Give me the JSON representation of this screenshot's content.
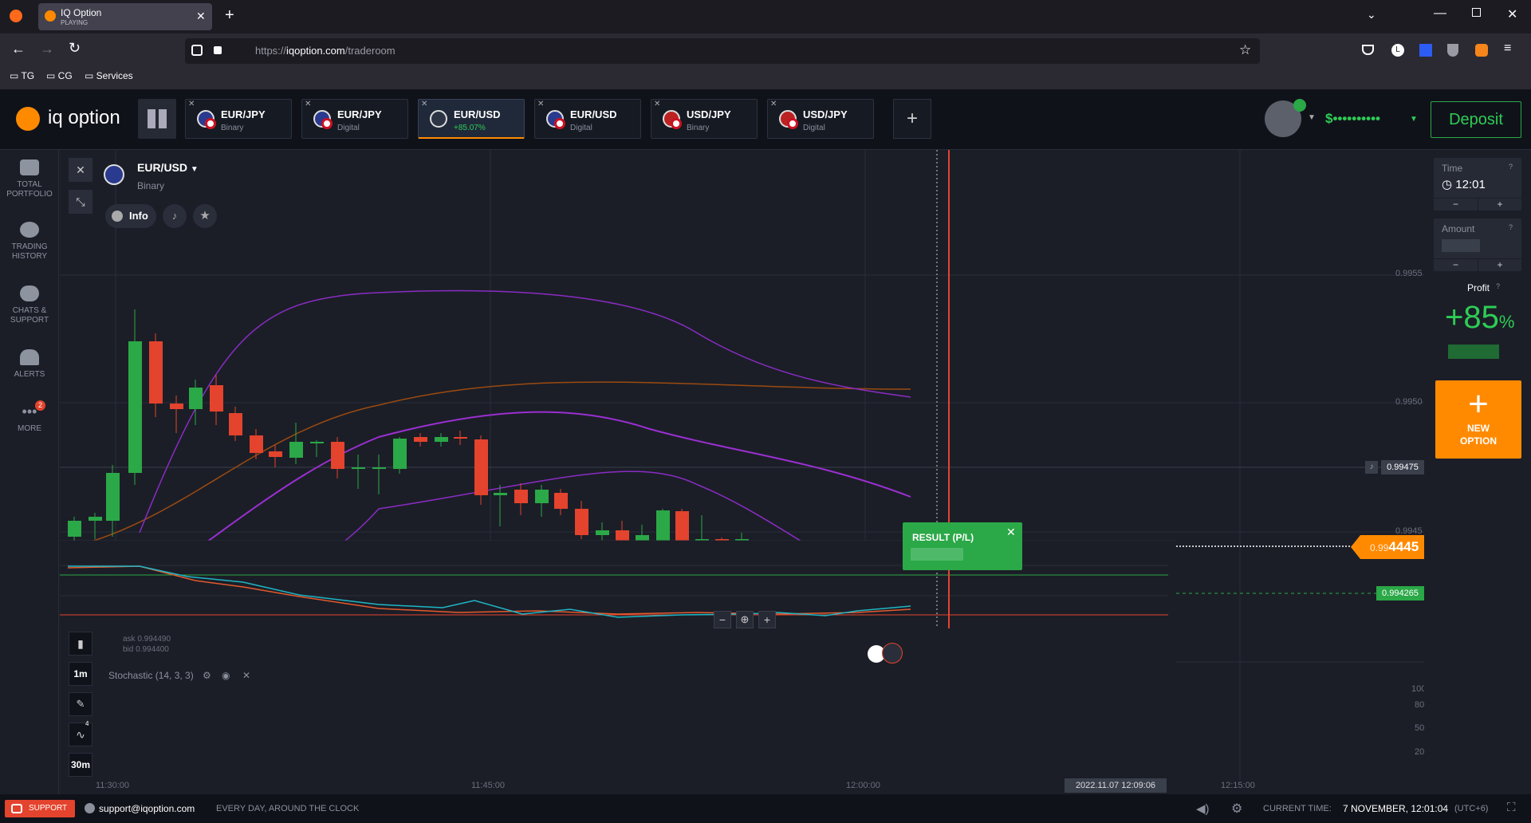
{
  "browser": {
    "tab_title": "IQ Option",
    "tab_status": "PLAYING",
    "url_scheme": "https://",
    "url_host": "iqoption.com",
    "url_path": "/traderoom",
    "bookmarks": [
      "TG",
      "CG",
      "Services"
    ]
  },
  "app": {
    "logo_text": "iq option",
    "deposit_label": "Deposit",
    "balance": "$••••••••••",
    "tabs": [
      {
        "pair": "EUR/JPY",
        "type": "Binary"
      },
      {
        "pair": "EUR/JPY",
        "type": "Digital"
      },
      {
        "pair": "EUR/USD",
        "type": "+85.07%"
      },
      {
        "pair": "EUR/USD",
        "type": "Digital"
      },
      {
        "pair": "USD/JPY",
        "type": "Binary"
      },
      {
        "pair": "USD/JPY",
        "type": "Digital"
      }
    ]
  },
  "sidebar": [
    {
      "label": "TOTAL PORTFOLIO"
    },
    {
      "label": "TRADING HISTORY"
    },
    {
      "label": "CHATS & SUPPORT"
    },
    {
      "label": "ALERTS"
    },
    {
      "label": "MORE",
      "badge": "2"
    }
  ],
  "asset": {
    "pair": "EUR/USD",
    "type": "Binary",
    "info_label": "Info"
  },
  "chart": {
    "price_labels": [
      "0.9955",
      "0.9950",
      "0.9945"
    ],
    "alert_price": "0.99475",
    "current_price_prefix": "0.99",
    "current_price_main": "4445",
    "entry_price": "0.994265",
    "ask": "ask 0.994490",
    "bid": "bid 0.994400",
    "time_labels": [
      "11:30:00",
      "11:45:00",
      "12:00:00",
      "12:15:00"
    ],
    "cursor_time": "2022.11.07 12:09:06",
    "result_label": "RESULT (P/L)",
    "timeframes": [
      "1m",
      "30m"
    ],
    "tool_badge": "4",
    "stoch_label": "Stochastic (14, 3, 3)",
    "stoch_levels": [
      "100",
      "80",
      "50",
      "20"
    ]
  },
  "right_panel": {
    "time_label": "Time",
    "time_value": "12:01",
    "amount_label": "Amount",
    "profit_label": "Profit",
    "profit_value": "+85",
    "profit_unit": "%",
    "new_option_label": "NEW OPTION",
    "minus": "−",
    "plus": "+"
  },
  "footer": {
    "support_label": "SUPPORT",
    "email": "support@iqoption.com",
    "hours": "EVERY DAY, AROUND THE CLOCK",
    "current_time_label": "CURRENT TIME:",
    "current_time": "7 NOVEMBER, 12:01:04",
    "tz": "(UTC+6)"
  },
  "colors": {
    "green": "#2ba847",
    "red": "#e4432d",
    "orange": "#ff8a00",
    "purple": "#9b2fd1"
  }
}
